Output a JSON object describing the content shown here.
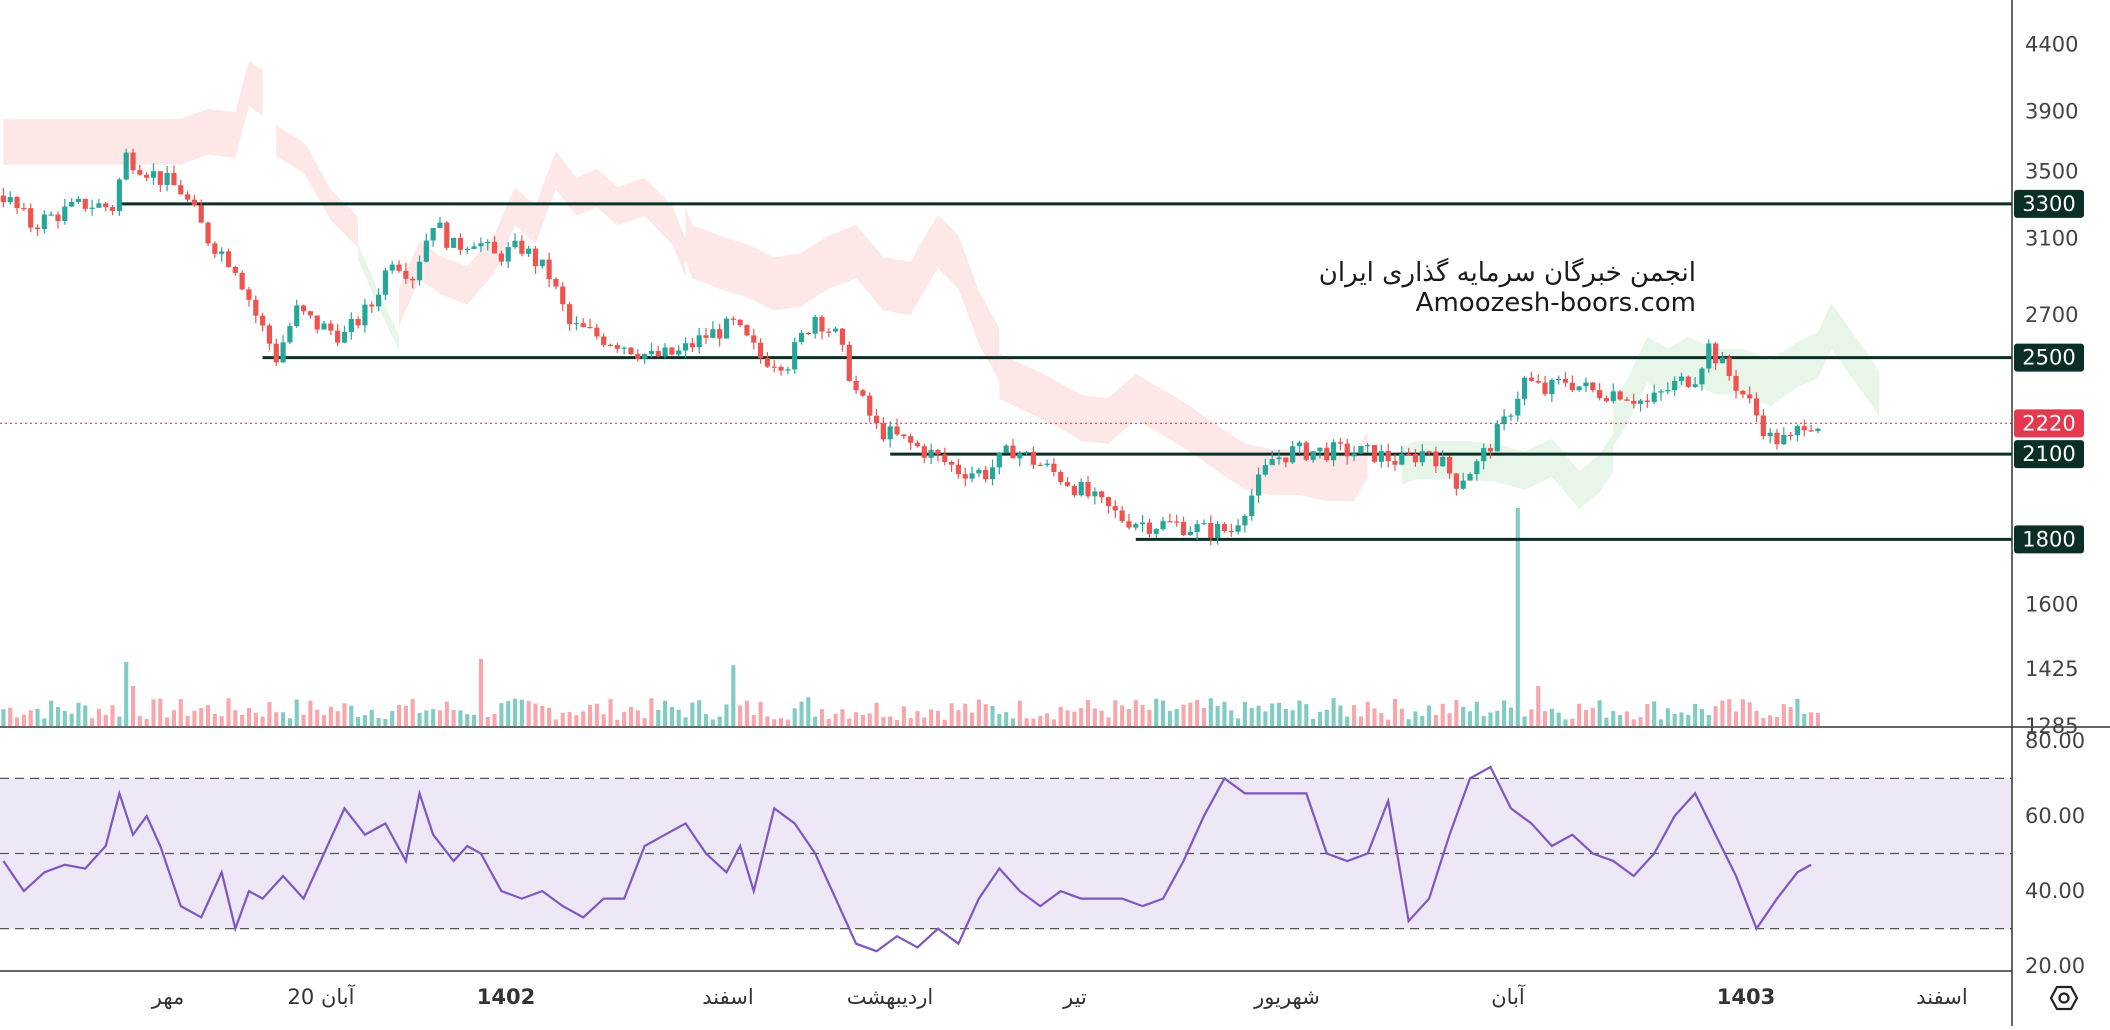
{
  "watermark": {
    "line1": "انجمن خبرگان سرمایه گذاری ایران",
    "line2": "Amoozesh-boors.com"
  },
  "colors": {
    "up": "#26a69a",
    "down": "#ef5350",
    "level_line": "#0b2e26",
    "rsi_line": "#7e57c2",
    "rsi_band": "#ede7f6",
    "cloud_bull": "#e8f5e9",
    "cloud_bear": "#fde7e7",
    "current_price": "#e53950"
  },
  "settings": {
    "icon": "settings-hexagon-icon"
  },
  "chart_data": [
    {
      "type": "candlestick",
      "name": "price",
      "y_axis_ticks": [
        1285,
        1425,
        1600,
        1800,
        2100,
        2220,
        2500,
        2700,
        3100,
        3300,
        3500,
        3900,
        4400
      ],
      "y_scale": "log",
      "ylim": [
        1285,
        4600
      ],
      "x_axis_ticks": [
        "مهر",
        "20 آبان",
        "1402",
        "اسفند",
        "اردیبهشت",
        "تیر",
        "شهریور",
        "آبان",
        "1403",
        "اسفند"
      ],
      "x_axis_bold": [
        "1402",
        "1403"
      ],
      "horizontal_levels": [
        {
          "value": 3300,
          "start_index": 17
        },
        {
          "value": 2500,
          "start_index": 38
        },
        {
          "value": 2100,
          "start_index": 130
        },
        {
          "value": 1800,
          "start_index": 166
        }
      ],
      "current_price": 2220,
      "close_path": [
        [
          0,
          3350
        ],
        [
          4,
          3180
        ],
        [
          8,
          3240
        ],
        [
          12,
          3300
        ],
        [
          16,
          3280
        ],
        [
          18,
          3600
        ],
        [
          22,
          3480
        ],
        [
          26,
          3380
        ],
        [
          30,
          3100
        ],
        [
          34,
          2950
        ],
        [
          37,
          2700
        ],
        [
          40,
          2500
        ],
        [
          43,
          2720
        ],
        [
          46,
          2650
        ],
        [
          50,
          2600
        ],
        [
          54,
          2750
        ],
        [
          57,
          3000
        ],
        [
          60,
          2900
        ],
        [
          63,
          3200
        ],
        [
          66,
          3050
        ],
        [
          69,
          3100
        ],
        [
          72,
          3000
        ],
        [
          76,
          3050
        ],
        [
          80,
          2900
        ],
        [
          83,
          2650
        ],
        [
          87,
          2600
        ],
        [
          91,
          2560
        ],
        [
          95,
          2500
        ],
        [
          99,
          2520
        ],
        [
          103,
          2600
        ],
        [
          107,
          2650
        ],
        [
          111,
          2500
        ],
        [
          115,
          2480
        ],
        [
          119,
          2700
        ],
        [
          122,
          2600
        ],
        [
          125,
          2350
        ],
        [
          128,
          2200
        ],
        [
          132,
          2150
        ],
        [
          136,
          2100
        ],
        [
          140,
          2040
        ],
        [
          144,
          2030
        ],
        [
          148,
          2120
        ],
        [
          152,
          2060
        ],
        [
          156,
          2000
        ],
        [
          160,
          1930
        ],
        [
          164,
          1870
        ],
        [
          168,
          1850
        ],
        [
          172,
          1850
        ],
        [
          176,
          1830
        ],
        [
          180,
          1830
        ],
        [
          183,
          1950
        ],
        [
          186,
          2080
        ],
        [
          189,
          2110
        ],
        [
          193,
          2110
        ],
        [
          197,
          2110
        ],
        [
          201,
          2100
        ],
        [
          205,
          2070
        ],
        [
          209,
          2120
        ],
        [
          213,
          2000
        ],
        [
          216,
          2060
        ],
        [
          220,
          2220
        ],
        [
          223,
          2400
        ],
        [
          226,
          2350
        ],
        [
          229,
          2400
        ],
        [
          233,
          2350
        ],
        [
          237,
          2350
        ],
        [
          241,
          2300
        ],
        [
          245,
          2380
        ],
        [
          248,
          2420
        ],
        [
          250,
          2550
        ],
        [
          253,
          2420
        ],
        [
          256,
          2300
        ],
        [
          259,
          2160
        ],
        [
          262,
          2150
        ],
        [
          264,
          2230
        ],
        [
          266,
          2220
        ]
      ],
      "volume": {
        "max_label": "1285",
        "spikes": [
          [
            18,
            0.4
          ],
          [
            19,
            0.25
          ],
          [
            39,
            0.15
          ],
          [
            70,
            0.42
          ],
          [
            107,
            0.38
          ],
          [
            118,
            0.18
          ],
          [
            222,
            0.55
          ],
          [
            225,
            0.25
          ],
          [
            182,
            0.15
          ],
          [
            200,
            0.15
          ]
        ]
      }
    },
    {
      "type": "line",
      "name": "RSI",
      "y_axis_ticks": [
        20,
        40,
        60,
        80
      ],
      "y_tick_labels": [
        "20.00",
        "40.00",
        "60.00",
        "80.00"
      ],
      "ylim": [
        19,
        81
      ],
      "band": [
        30,
        70
      ],
      "midline": 50,
      "x": [
        0,
        3,
        6,
        9,
        12,
        15,
        17,
        19,
        21,
        23,
        26,
        29,
        32,
        34,
        36,
        38,
        41,
        44,
        47,
        50,
        53,
        56,
        59,
        61,
        63,
        66,
        68,
        70,
        73,
        76,
        79,
        82,
        85,
        88,
        91,
        94,
        97,
        100,
        103,
        106,
        108,
        110,
        113,
        116,
        119,
        122,
        125,
        128,
        131,
        134,
        137,
        140,
        143,
        146,
        149,
        152,
        155,
        158,
        161,
        164,
        167,
        170,
        173,
        176,
        179,
        182,
        185,
        188,
        191,
        194,
        197,
        200,
        203,
        206,
        209,
        212,
        215,
        218,
        221,
        224,
        227,
        230,
        233,
        236,
        239,
        242,
        245,
        248,
        251,
        254,
        257,
        260,
        263,
        265
      ],
      "y": [
        48,
        40,
        45,
        47,
        46,
        52,
        66,
        55,
        60,
        52,
        36,
        33,
        45,
        30,
        40,
        38,
        44,
        38,
        50,
        62,
        55,
        58,
        48,
        66,
        55,
        48,
        52,
        50,
        40,
        38,
        40,
        36,
        33,
        38,
        38,
        52,
        55,
        58,
        50,
        45,
        52,
        40,
        62,
        58,
        50,
        38,
        26,
        24,
        28,
        25,
        30,
        26,
        38,
        46,
        40,
        36,
        40,
        38,
        38,
        38,
        36,
        38,
        48,
        60,
        70,
        66,
        66,
        66,
        66,
        50,
        48,
        50,
        64,
        32,
        38,
        55,
        70,
        73,
        62,
        58,
        52,
        55,
        50,
        48,
        44,
        50,
        60,
        66,
        55,
        44,
        30,
        38,
        45,
        47
      ]
    }
  ]
}
